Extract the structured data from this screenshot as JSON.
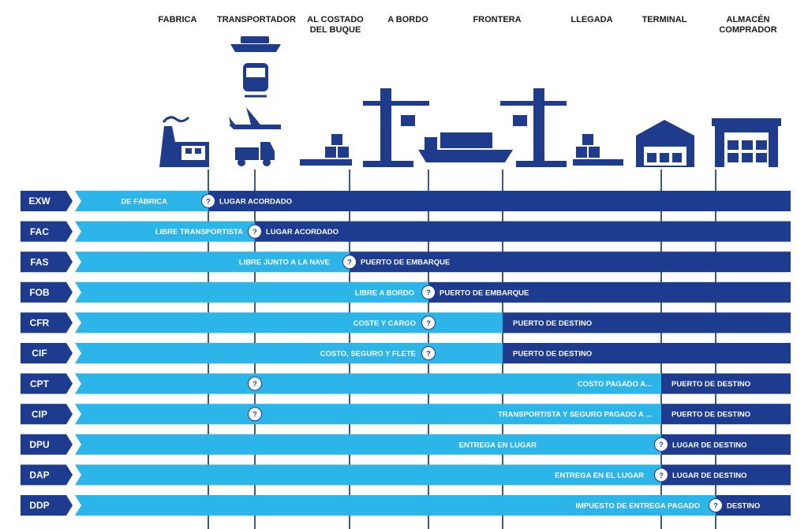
{
  "headers": [
    "FABRICA",
    "TRANSPORTADOR",
    "AL COSTADO\nDEL BUQUE",
    "A BORDO",
    "FRONTERA",
    "LLEGADA",
    "TERMINAL",
    "ALMACÉN\nCOMPRADOR"
  ],
  "help_marker": "?",
  "rows": [
    {
      "code": "EXW",
      "left": "DE FÁBRICA",
      "right": "LUGAR ACORDADO"
    },
    {
      "code": "FAC",
      "left": "LIBRE TRANSPORTISTA",
      "right": "LUGAR ACORDADO"
    },
    {
      "code": "FAS",
      "left": "LIBRE JUNTO A LA NAVE",
      "right": "PUERTO DE EMBARQUE"
    },
    {
      "code": "FOB",
      "left": "LIBRE A BORDO",
      "right": "PUERTO DE EMBARQUE"
    },
    {
      "code": "CFR",
      "left": "COSTE Y CARGO",
      "right": "PUERTO DE DESTINO"
    },
    {
      "code": "CIF",
      "left": "COSTO, SEGURO Y FLETE",
      "right": "PUERTO DE DESTINO"
    },
    {
      "code": "CPT",
      "left": "COSTO PAGADO A...",
      "right": "PUERTO DE DESTINO"
    },
    {
      "code": "CIP",
      "left": "TRANSPORTISTA Y SEGURO PAGADO A ...",
      "right": "PUERTO DE DESTINO"
    },
    {
      "code": "DPU",
      "left": "ENTREGA EN LUGAR",
      "right": "LUGAR DE DESTINO"
    },
    {
      "code": "DAP",
      "left": "ENTREGA EN EL LUGAR",
      "right": "LUGAR DE DESTINO"
    },
    {
      "code": "DDP",
      "left": "IMPUESTO DE ENTREGA PAGADO",
      "right": "DESTINO"
    }
  ]
}
